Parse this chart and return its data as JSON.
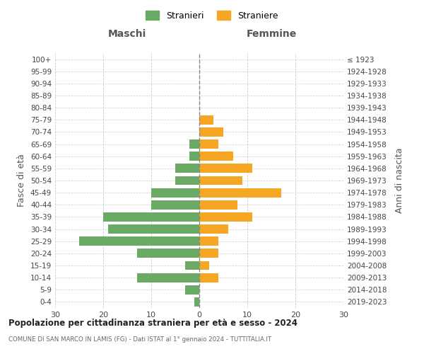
{
  "age_groups": [
    "0-4",
    "5-9",
    "10-14",
    "15-19",
    "20-24",
    "25-29",
    "30-34",
    "35-39",
    "40-44",
    "45-49",
    "50-54",
    "55-59",
    "60-64",
    "65-69",
    "70-74",
    "75-79",
    "80-84",
    "85-89",
    "90-94",
    "95-99",
    "100+"
  ],
  "birth_years": [
    "2019-2023",
    "2014-2018",
    "2009-2013",
    "2004-2008",
    "1999-2003",
    "1994-1998",
    "1989-1993",
    "1984-1988",
    "1979-1983",
    "1974-1978",
    "1969-1973",
    "1964-1968",
    "1959-1963",
    "1954-1958",
    "1949-1953",
    "1944-1948",
    "1939-1943",
    "1934-1938",
    "1929-1933",
    "1924-1928",
    "≤ 1923"
  ],
  "males": [
    1,
    3,
    13,
    3,
    13,
    25,
    19,
    20,
    10,
    10,
    5,
    5,
    2,
    2,
    0,
    0,
    0,
    0,
    0,
    0,
    0
  ],
  "females": [
    0,
    0,
    4,
    2,
    4,
    4,
    6,
    11,
    8,
    17,
    9,
    11,
    7,
    4,
    5,
    3,
    0,
    0,
    0,
    0,
    0
  ],
  "male_color": "#6aaa64",
  "female_color": "#f5a623",
  "background_color": "#ffffff",
  "grid_color": "#cccccc",
  "title": "Popolazione per cittadinanza straniera per età e sesso - 2024",
  "subtitle": "COMUNE DI SAN MARCO IN LAMIS (FG) - Dati ISTAT al 1° gennaio 2024 - TUTTITALIA.IT",
  "label_maschi": "Maschi",
  "label_femmine": "Femmine",
  "ylabel_left": "Fasce di età",
  "ylabel_right": "Anni di nascita",
  "legend_male": "Stranieri",
  "legend_female": "Straniere",
  "xlim": 30
}
